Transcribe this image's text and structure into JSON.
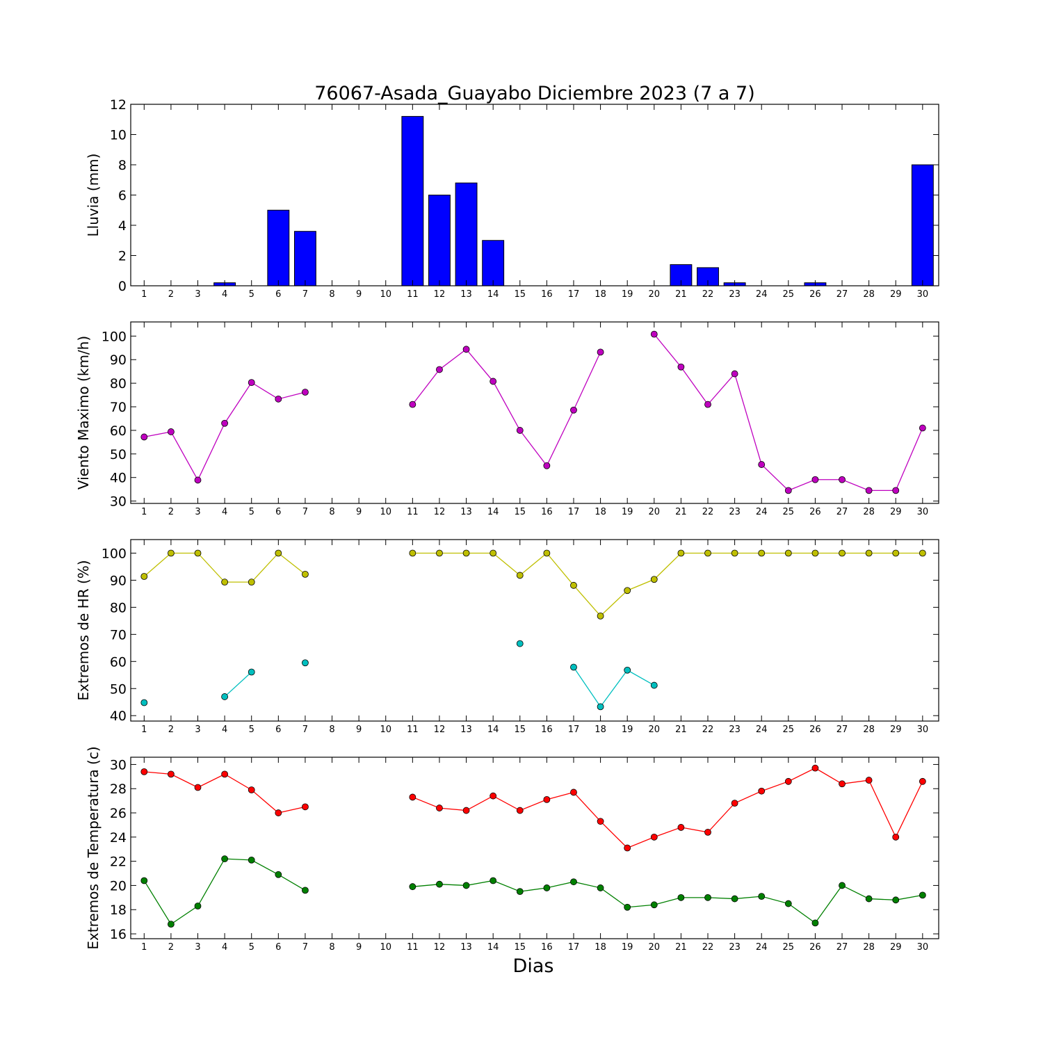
{
  "figure": {
    "title": "76067-Asada_Guayabo Diciembre 2023  (7 a 7)",
    "xlabel": "Dias"
  },
  "chart_data": [
    {
      "type": "bar",
      "ylabel": "Lluvia (mm)",
      "ylim": [
        0,
        12
      ],
      "yticks": [
        0,
        2,
        4,
        6,
        8,
        10,
        12
      ],
      "categories": [
        "1",
        "2",
        "3",
        "4",
        "5",
        "6",
        "7",
        "8",
        "9",
        "10",
        "11",
        "12",
        "13",
        "14",
        "15",
        "16",
        "17",
        "18",
        "19",
        "20",
        "21",
        "22",
        "23",
        "24",
        "25",
        "26",
        "27",
        "28",
        "29",
        "30"
      ],
      "x": [
        1,
        2,
        3,
        4,
        5,
        6,
        7,
        8,
        9,
        10,
        11,
        12,
        13,
        14,
        15,
        16,
        17,
        18,
        19,
        20,
        21,
        22,
        23,
        24,
        25,
        26,
        27,
        28,
        29,
        30
      ],
      "series": [
        {
          "color": "#0000ff",
          "values": [
            0,
            0,
            0,
            0.2,
            0,
            5.0,
            3.6,
            0,
            0,
            0,
            11.2,
            6.0,
            6.8,
            3.0,
            0,
            0,
            0,
            0,
            0,
            0,
            1.4,
            1.2,
            0.2,
            0,
            0,
            0.2,
            0,
            0,
            0,
            8.0
          ]
        }
      ],
      "grid": false
    },
    {
      "type": "line",
      "ylabel": "Viento Maximo (km/h)",
      "ylim": [
        29,
        106
      ],
      "yticks": [
        30,
        40,
        50,
        60,
        70,
        80,
        90,
        100
      ],
      "categories": [
        "1",
        "2",
        "3",
        "4",
        "5",
        "6",
        "7",
        "8",
        "9",
        "10",
        "11",
        "12",
        "13",
        "14",
        "15",
        "16",
        "17",
        "18",
        "19",
        "20",
        "21",
        "22",
        "23",
        "24",
        "25",
        "26",
        "27",
        "28",
        "29",
        "30"
      ],
      "x": [
        1,
        2,
        3,
        4,
        5,
        6,
        7,
        8,
        9,
        10,
        11,
        12,
        13,
        14,
        15,
        16,
        17,
        18,
        19,
        20,
        21,
        22,
        23,
        24,
        25,
        26,
        27,
        28,
        29,
        30
      ],
      "series": [
        {
          "color": "#bf00bf",
          "values": [
            57.2,
            59.4,
            38.9,
            63.0,
            80.3,
            73.3,
            76.2,
            null,
            null,
            null,
            71.0,
            85.8,
            94.4,
            80.8,
            60.0,
            45.0,
            68.6,
            93.2,
            null,
            100.8,
            86.9,
            71.0,
            84.0,
            45.5,
            34.5,
            39.1,
            39.1,
            34.5,
            34.5,
            61.0
          ]
        }
      ],
      "grid": false
    },
    {
      "type": "line",
      "ylabel": "Extremos de HR (%)",
      "ylim": [
        38,
        105
      ],
      "yticks": [
        40,
        50,
        60,
        70,
        80,
        90,
        100
      ],
      "categories": [
        "1",
        "2",
        "3",
        "4",
        "5",
        "6",
        "7",
        "8",
        "9",
        "10",
        "11",
        "12",
        "13",
        "14",
        "15",
        "16",
        "17",
        "18",
        "19",
        "20",
        "21",
        "22",
        "23",
        "24",
        "25",
        "26",
        "27",
        "28",
        "29",
        "30"
      ],
      "x": [
        1,
        2,
        3,
        4,
        5,
        6,
        7,
        8,
        9,
        10,
        11,
        12,
        13,
        14,
        15,
        16,
        17,
        18,
        19,
        20,
        21,
        22,
        23,
        24,
        25,
        26,
        27,
        28,
        29,
        30
      ],
      "series": [
        {
          "color": "#bfbf00",
          "values": [
            91.4,
            100,
            100,
            89.3,
            89.3,
            100,
            92.2,
            null,
            null,
            null,
            100,
            100,
            100,
            100,
            91.8,
            100,
            88.1,
            76.8,
            86.2,
            90.3,
            100,
            100,
            100,
            100,
            100,
            100,
            100,
            100,
            100,
            100
          ]
        },
        {
          "color": "#00bfbf",
          "values": [
            44.8,
            null,
            null,
            47.0,
            56.1,
            null,
            59.5,
            null,
            null,
            null,
            null,
            null,
            null,
            null,
            66.6,
            null,
            57.9,
            43.3,
            56.8,
            51.2,
            null,
            null,
            null,
            null,
            null,
            null,
            null,
            null,
            null,
            null
          ]
        }
      ],
      "grid": false
    },
    {
      "type": "line",
      "ylabel": "Extremos de Temperatura (c)",
      "ylim": [
        15.6,
        30.6
      ],
      "yticks": [
        16,
        18,
        20,
        22,
        24,
        26,
        28,
        30
      ],
      "categories": [
        "1",
        "2",
        "3",
        "4",
        "5",
        "6",
        "7",
        "8",
        "9",
        "10",
        "11",
        "12",
        "13",
        "14",
        "15",
        "16",
        "17",
        "18",
        "19",
        "20",
        "21",
        "22",
        "23",
        "24",
        "25",
        "26",
        "27",
        "28",
        "29",
        "30"
      ],
      "x": [
        1,
        2,
        3,
        4,
        5,
        6,
        7,
        8,
        9,
        10,
        11,
        12,
        13,
        14,
        15,
        16,
        17,
        18,
        19,
        20,
        21,
        22,
        23,
        24,
        25,
        26,
        27,
        28,
        29,
        30
      ],
      "series": [
        {
          "color": "#ff0000",
          "values": [
            29.4,
            29.2,
            28.1,
            29.2,
            27.9,
            26.0,
            26.5,
            null,
            null,
            null,
            27.3,
            26.4,
            26.2,
            27.4,
            26.2,
            27.1,
            27.7,
            25.3,
            23.1,
            24.0,
            24.8,
            24.4,
            26.8,
            27.8,
            28.6,
            29.7,
            28.4,
            28.7,
            24.0,
            28.6
          ]
        },
        {
          "color": "#008000",
          "values": [
            20.4,
            16.8,
            18.3,
            22.2,
            22.1,
            20.9,
            19.6,
            null,
            null,
            null,
            19.9,
            20.1,
            20.0,
            20.4,
            19.5,
            19.8,
            20.3,
            19.8,
            18.2,
            18.4,
            19.0,
            19.0,
            18.9,
            19.1,
            18.5,
            16.9,
            20.0,
            18.9,
            18.8,
            19.2
          ]
        }
      ],
      "grid": false
    }
  ]
}
